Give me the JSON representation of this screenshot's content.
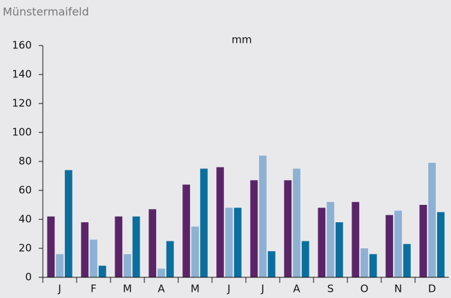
{
  "chart_data": {
    "type": "bar",
    "title": "Münstermaifeld",
    "y_label": "mm",
    "categories": [
      "J",
      "F",
      "M",
      "A",
      "M",
      "J",
      "J",
      "A",
      "S",
      "O",
      "N",
      "D"
    ],
    "series": [
      {
        "color": "#5b2468",
        "values": [
          42,
          38,
          42,
          47,
          64,
          76,
          67,
          67,
          48,
          52,
          43,
          50
        ]
      },
      {
        "color": "#8cb1d4",
        "values": [
          16,
          26,
          16,
          6,
          35,
          48,
          84,
          75,
          52,
          20,
          46,
          79
        ]
      },
      {
        "color": "#0a6f9e",
        "values": [
          74,
          8,
          42,
          25,
          75,
          48,
          18,
          25,
          38,
          16,
          23,
          45
        ]
      }
    ],
    "ylim": [
      0,
      160
    ],
    "yticks": [
      0,
      20,
      40,
      60,
      80,
      100,
      120,
      140,
      160
    ],
    "grid": false
  }
}
